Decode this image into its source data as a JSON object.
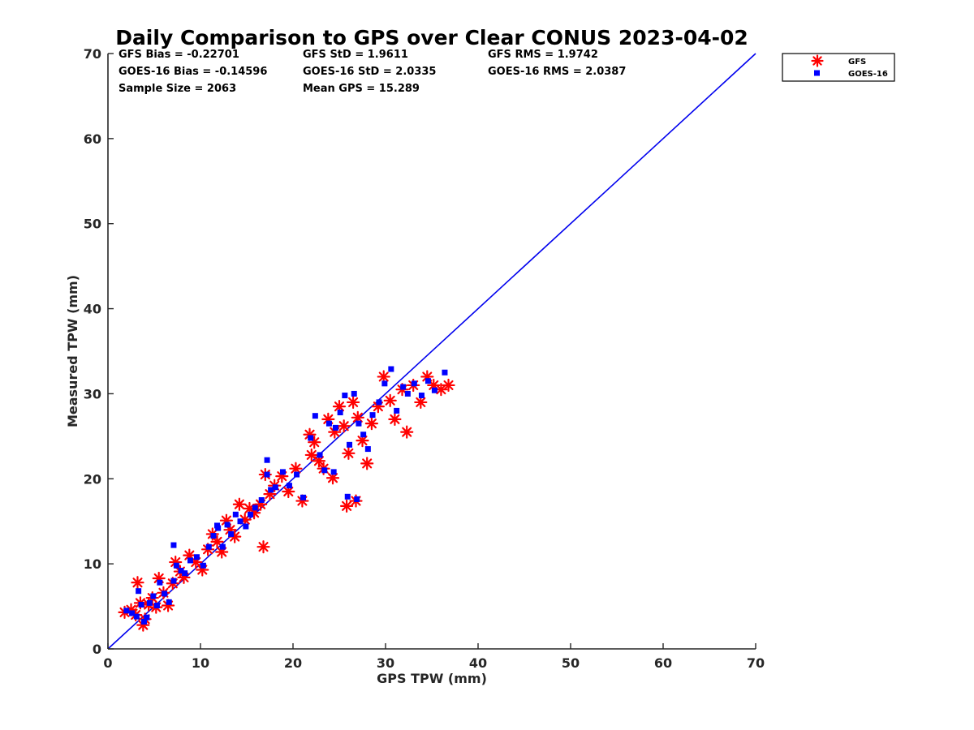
{
  "chart_data": {
    "type": "scatter",
    "title": "Daily Comparison to GPS over Clear CONUS 2023-04-02",
    "xlabel": "GPS TPW (mm)",
    "ylabel": "Measured TPW (mm)",
    "xlim": [
      0,
      70
    ],
    "ylim": [
      0,
      70
    ],
    "xticks": [
      "0",
      "10",
      "20",
      "30",
      "40",
      "50",
      "60",
      "70"
    ],
    "yticks": [
      "0",
      "10",
      "20",
      "30",
      "40",
      "50",
      "60",
      "70"
    ],
    "grid": false,
    "legend_position": "outside top-right",
    "stats": [
      "GFS Bias = -0.22701",
      "GFS StD = 1.9611",
      "GFS RMS = 1.9742",
      "GOES-16 Bias = -0.14596",
      "GOES-16 StD = 2.0335",
      "GOES-16 RMS = 2.0387",
      "Sample Size = 2063",
      "Mean GPS = 15.289"
    ],
    "reference_line": {
      "name": "1:1 line",
      "x": [
        0,
        70
      ],
      "y": [
        0,
        70
      ],
      "color": "#0000ee"
    },
    "series": [
      {
        "name": "GFS",
        "marker": "asterisk",
        "color": "#ff0000",
        "x": [
          1.8,
          2.5,
          3.0,
          3.2,
          3.5,
          3.8,
          4.0,
          4.4,
          4.8,
          5.2,
          5.5,
          6.0,
          6.5,
          7.0,
          7.3,
          7.8,
          8.2,
          8.8,
          9.5,
          10.2,
          10.8,
          11.3,
          11.8,
          12.3,
          12.8,
          13.2,
          13.7,
          14.2,
          14.8,
          15.3,
          15.8,
          16.5,
          17.0,
          17.5,
          18.0,
          18.8,
          19.5,
          20.3,
          21.0,
          21.8,
          22.3,
          22.8,
          23.3,
          23.8,
          24.5,
          25.0,
          25.5,
          26.0,
          26.5,
          27.0,
          27.5,
          28.0,
          28.5,
          29.2,
          29.8,
          30.5,
          31.0,
          31.8,
          32.3,
          33.0,
          33.8,
          34.5,
          35.2,
          36.0,
          36.8,
          25.8,
          26.8,
          24.3,
          22.0,
          16.8
        ],
        "y": [
          4.3,
          4.6,
          4.0,
          7.8,
          5.4,
          2.8,
          3.5,
          5.2,
          6.0,
          4.9,
          8.3,
          6.6,
          5.1,
          7.7,
          10.2,
          9.1,
          8.4,
          11.0,
          10.2,
          9.3,
          11.7,
          13.5,
          12.6,
          11.4,
          15.1,
          14.0,
          13.2,
          17.0,
          15.2,
          16.5,
          16.0,
          17.0,
          20.5,
          18.2,
          19.2,
          20.3,
          18.5,
          21.2,
          17.4,
          25.2,
          24.3,
          22.1,
          21.2,
          27.0,
          25.5,
          28.5,
          26.2,
          23.0,
          29.0,
          27.2,
          24.5,
          21.8,
          26.5,
          28.5,
          32.0,
          29.2,
          27.0,
          30.5,
          25.5,
          31.0,
          29.0,
          32.0,
          31.0,
          30.5,
          31.0,
          16.8,
          17.4,
          20.1,
          22.8,
          12.0
        ]
      },
      {
        "name": "GOES-16",
        "marker": "square",
        "color": "#0000ff",
        "x": [
          2.0,
          2.6,
          3.1,
          3.3,
          3.6,
          3.9,
          4.2,
          4.5,
          4.9,
          5.3,
          5.6,
          6.1,
          6.6,
          7.1,
          7.4,
          7.9,
          8.3,
          8.9,
          9.6,
          10.3,
          10.9,
          11.4,
          11.9,
          12.4,
          12.9,
          13.3,
          13.8,
          14.3,
          14.9,
          15.4,
          15.9,
          16.6,
          17.2,
          17.6,
          18.1,
          18.9,
          19.6,
          20.4,
          21.1,
          21.9,
          22.4,
          22.9,
          23.4,
          23.9,
          24.6,
          25.1,
          25.6,
          26.1,
          26.6,
          27.1,
          27.6,
          28.1,
          28.6,
          29.3,
          29.9,
          30.6,
          31.2,
          31.9,
          32.4,
          33.1,
          33.9,
          34.6,
          35.3,
          36.4,
          25.9,
          26.9,
          24.4,
          17.2,
          7.1,
          11.8
        ],
        "y": [
          4.5,
          4.2,
          3.8,
          6.8,
          5.2,
          3.2,
          3.7,
          5.4,
          6.2,
          5.1,
          7.8,
          6.5,
          5.5,
          8.0,
          9.8,
          9.2,
          8.9,
          10.4,
          10.8,
          9.8,
          12.0,
          13.3,
          14.2,
          12.0,
          14.6,
          13.5,
          15.8,
          15.0,
          14.4,
          15.8,
          16.6,
          17.5,
          22.2,
          18.7,
          19.0,
          20.8,
          19.2,
          20.5,
          17.8,
          24.8,
          27.4,
          22.8,
          21.0,
          26.5,
          26.0,
          27.8,
          29.8,
          24.0,
          30.0,
          26.5,
          25.2,
          23.5,
          27.5,
          29.0,
          31.2,
          32.9,
          28.0,
          30.8,
          30.0,
          31.2,
          29.8,
          31.5,
          30.4,
          32.5,
          17.9,
          17.6,
          20.8,
          20.5,
          12.2,
          14.5
        ]
      }
    ]
  }
}
